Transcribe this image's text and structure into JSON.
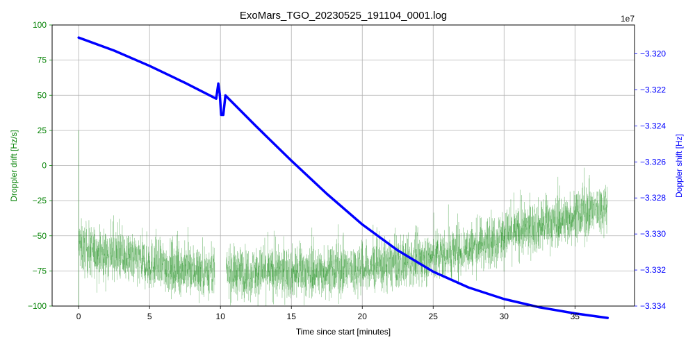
{
  "chart_data": {
    "type": "line",
    "title": "ExoMars_TGO_20230525_191104_0001.log",
    "xlabel": "Time since start [minutes]",
    "ylabel_left": "Droppler drift [Hz/s]",
    "ylabel_right": "Doppler shift [Hz]",
    "right_axis_offset_text": "1e7",
    "xlim": [
      -1.87,
      39.2
    ],
    "ylim_left": [
      -100,
      100
    ],
    "ylim_right": [
      -3.334,
      -3.3184
    ],
    "x_ticks": [
      0,
      5,
      10,
      15,
      20,
      25,
      30,
      35
    ],
    "y_ticks_left": [
      100,
      75,
      50,
      25,
      0,
      -25,
      -50,
      -75,
      -100
    ],
    "y_ticks_right": [
      -3.32,
      -3.322,
      -3.324,
      -3.326,
      -3.328,
      -3.33,
      -3.332,
      -3.334
    ],
    "y_tick_labels_right": [
      "−3.320",
      "−3.322",
      "−3.324",
      "−3.326",
      "−3.328",
      "−3.330",
      "−3.332",
      "−3.334"
    ],
    "y_tick_labels_left": [
      "100",
      "75",
      "50",
      "25",
      "0",
      "−25",
      "−50",
      "−75",
      "−100"
    ],
    "grid": true,
    "colors": {
      "drift": "#008000",
      "shift": "#0000ff",
      "grid": "#b0b0b0"
    },
    "series": [
      {
        "axis": "right",
        "x": [
          0,
          2.5,
          5,
          7.5,
          9.7,
          9.85,
          9.95,
          10.05,
          10.2,
          10.35,
          12.5,
          15,
          17.5,
          20,
          22.5,
          25,
          27.5,
          30,
          32.5,
          35,
          37.3
        ],
        "values": [
          -3.3191,
          -3.31982,
          -3.32067,
          -3.32161,
          -3.32249,
          -3.32165,
          -3.32223,
          -3.32339,
          -3.32339,
          -3.32231,
          -3.32401,
          -3.32593,
          -3.32777,
          -3.32947,
          -3.33091,
          -3.33209,
          -3.33297,
          -3.33361,
          -3.33407,
          -3.33441,
          -3.33466
        ]
      },
      {
        "axis": "left",
        "x": [
          0,
          0.3,
          2.5,
          5,
          7.5,
          9.6,
          10.4,
          12.5,
          15,
          17.5,
          20,
          22.5,
          25,
          27.5,
          30,
          32.5,
          35,
          37.3
        ],
        "values": [
          -55,
          -60,
          -64,
          -70,
          -74,
          -75,
          -76,
          -76,
          -76,
          -75,
          -73,
          -70,
          -65,
          -59,
          -50,
          -43,
          -36,
          -29
        ],
        "gaps": [
          [
            9.6,
            10.4
          ]
        ],
        "noise_amplitude": 13
      }
    ]
  }
}
